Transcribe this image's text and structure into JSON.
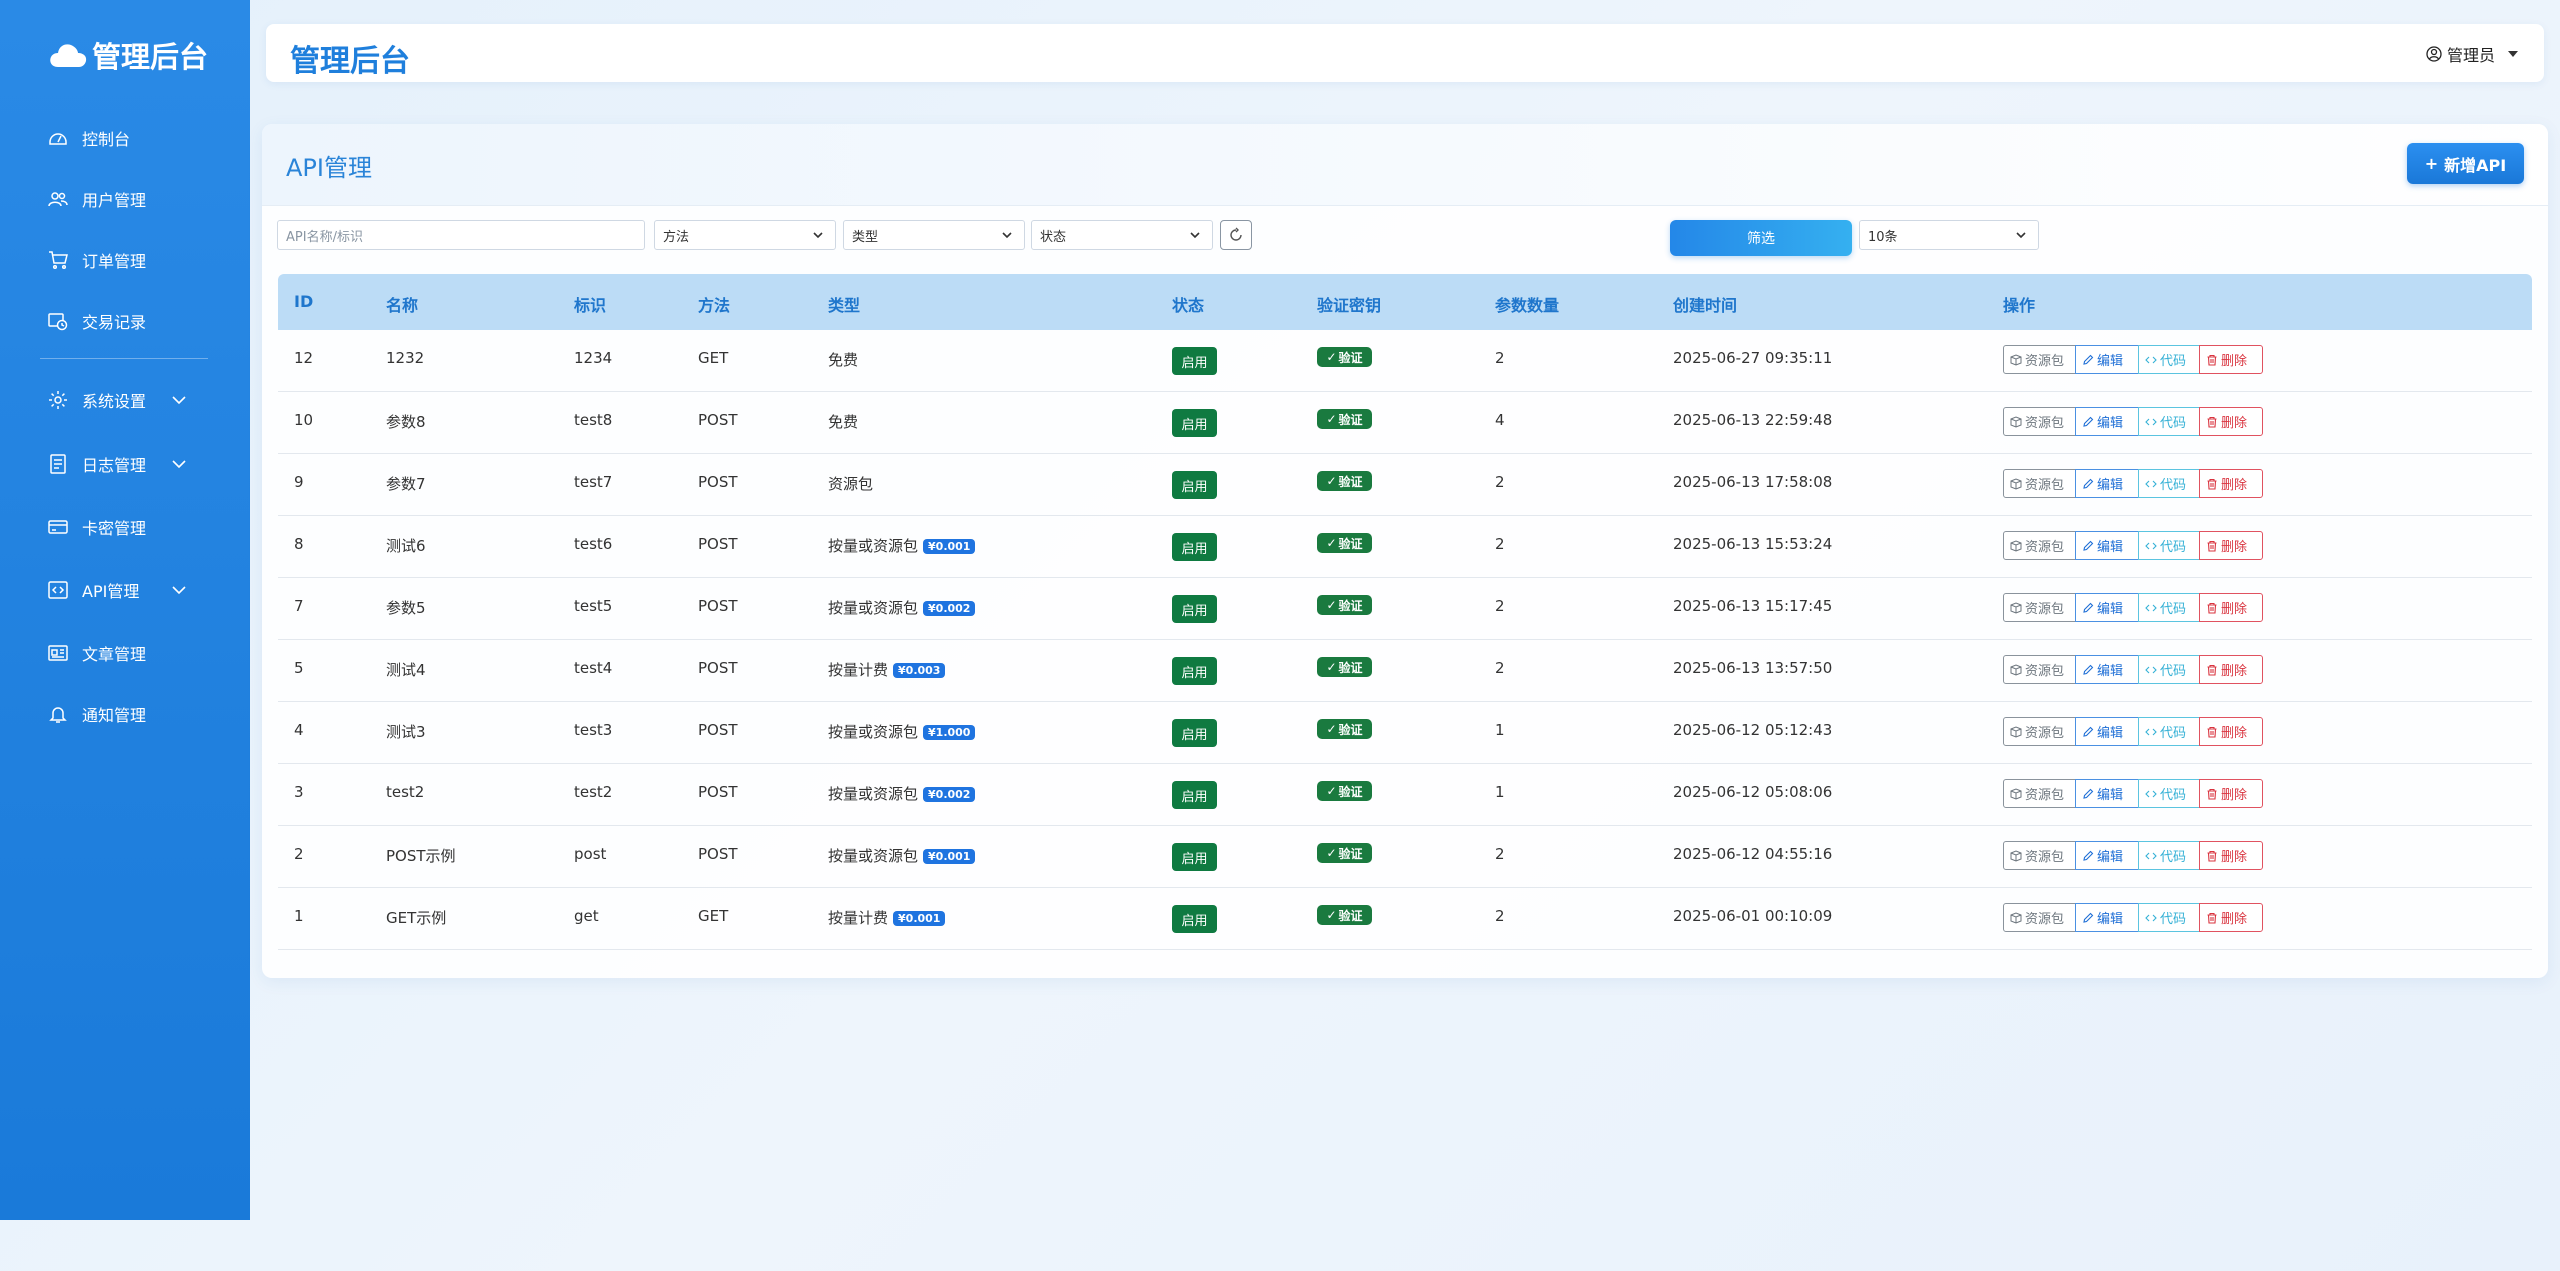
{
  "sidebar": {
    "brand": "管理后台",
    "items": [
      {
        "label": "控制台",
        "icon": "dashboard-icon"
      },
      {
        "label": "用户管理",
        "icon": "users-icon"
      },
      {
        "label": "订单管理",
        "icon": "cart-icon"
      },
      {
        "label": "交易记录",
        "icon": "transaction-icon"
      },
      {
        "label": "系统设置",
        "icon": "gear-icon"
      },
      {
        "label": "日志管理",
        "icon": "log-icon"
      },
      {
        "label": "卡密管理",
        "icon": "card-icon"
      },
      {
        "label": "API管理",
        "icon": "code-icon"
      },
      {
        "label": "文章管理",
        "icon": "article-icon"
      },
      {
        "label": "通知管理",
        "icon": "bell-icon"
      }
    ]
  },
  "header": {
    "title": "管理后台",
    "user": "管理员"
  },
  "page": {
    "title": "API管理",
    "add_button": "新增API"
  },
  "filters": {
    "search_placeholder": "API名称/标识",
    "method": "方法",
    "type": "类型",
    "status": "状态",
    "filter_button": "筛选",
    "page_size": "10条"
  },
  "table": {
    "columns": [
      "ID",
      "名称",
      "标识",
      "方法",
      "类型",
      "状态",
      "验证密钥",
      "参数数量",
      "创建时间",
      "操作"
    ],
    "rows": [
      {
        "id": "12",
        "name": "1232",
        "key": "1234",
        "method": "GET",
        "type": "免费",
        "price": "",
        "status": "启用",
        "verify": "验证",
        "params": "2",
        "created": "2025-06-27 09:35:11"
      },
      {
        "id": "10",
        "name": "参数8",
        "key": "test8",
        "method": "POST",
        "type": "免费",
        "price": "",
        "status": "启用",
        "verify": "验证",
        "params": "4",
        "created": "2025-06-13 22:59:48"
      },
      {
        "id": "9",
        "name": "参数7",
        "key": "test7",
        "method": "POST",
        "type": "资源包",
        "price": "",
        "status": "启用",
        "verify": "验证",
        "params": "2",
        "created": "2025-06-13 17:58:08"
      },
      {
        "id": "8",
        "name": "测试6",
        "key": "test6",
        "method": "POST",
        "type": "按量或资源包",
        "price": "¥0.001",
        "status": "启用",
        "verify": "验证",
        "params": "2",
        "created": "2025-06-13 15:53:24"
      },
      {
        "id": "7",
        "name": "参数5",
        "key": "test5",
        "method": "POST",
        "type": "按量或资源包",
        "price": "¥0.002",
        "status": "启用",
        "verify": "验证",
        "params": "2",
        "created": "2025-06-13 15:17:45"
      },
      {
        "id": "5",
        "name": "测试4",
        "key": "test4",
        "method": "POST",
        "type": "按量计费",
        "price": "¥0.003",
        "status": "启用",
        "verify": "验证",
        "params": "2",
        "created": "2025-06-13 13:57:50"
      },
      {
        "id": "4",
        "name": "测试3",
        "key": "test3",
        "method": "POST",
        "type": "按量或资源包",
        "price": "¥1.000",
        "status": "启用",
        "verify": "验证",
        "params": "1",
        "created": "2025-06-12 05:12:43"
      },
      {
        "id": "3",
        "name": "test2",
        "key": "test2",
        "method": "POST",
        "type": "按量或资源包",
        "price": "¥0.002",
        "status": "启用",
        "verify": "验证",
        "params": "1",
        "created": "2025-06-12 05:08:06"
      },
      {
        "id": "2",
        "name": "POST示例",
        "key": "post",
        "method": "POST",
        "type": "按量或资源包",
        "price": "¥0.001",
        "status": "启用",
        "verify": "验证",
        "params": "2",
        "created": "2025-06-12 04:55:16"
      },
      {
        "id": "1",
        "name": "GET示例",
        "key": "get",
        "method": "GET",
        "type": "按量计费",
        "price": "¥0.001",
        "status": "启用",
        "verify": "验证",
        "params": "2",
        "created": "2025-06-01 00:10:09"
      }
    ],
    "actions": {
      "package": "资源包",
      "edit": "编辑",
      "code": "代码",
      "delete": "删除"
    }
  },
  "colors": {
    "sidebar": "#1f80df",
    "accent": "#1f7fdc",
    "status_green": "#0f7a41",
    "price_blue": "#1f74e0"
  }
}
